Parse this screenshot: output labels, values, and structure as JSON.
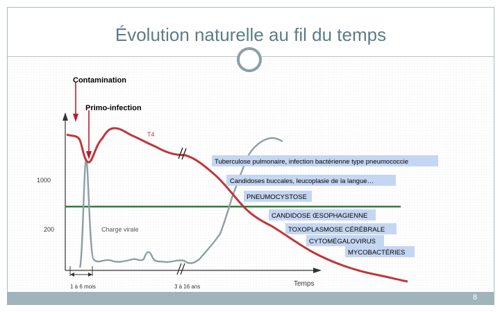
{
  "slide": {
    "title": "Évolution naturelle au fil du temps",
    "page_number": "8"
  },
  "chart": {
    "contamination_label": "Contamination",
    "primo_label": "Primo-infection",
    "t4_label": "T4",
    "y_tick_1000": "1000",
    "y_tick_200": "200",
    "viral_load_label": "Charge virale",
    "x_label_1": "1 à 6 mois",
    "x_label_2": "3 à 16 ans",
    "x_axis_title": "Temps",
    "events": [
      "Tuberculose pulmonaire, infection bactérienne type pneumococcie",
      "Candidoses buccales, leucoplasie de la langue…",
      "PNEUMOCYSTOSE",
      "CANDIDOSE ŒSOPHAGIENNE",
      "TOXOPLASMOSE CÉRÉBRALE",
      "CYTOMÉGALOVIRUS",
      "MYCOBACTÉRIES"
    ],
    "colors": {
      "t4_curve": "#c0353a",
      "viral_curve": "#8e9ea3",
      "threshold": "#2e7d3a",
      "arrow": "#c0192d",
      "label_box": "#c5d6f2"
    }
  }
}
